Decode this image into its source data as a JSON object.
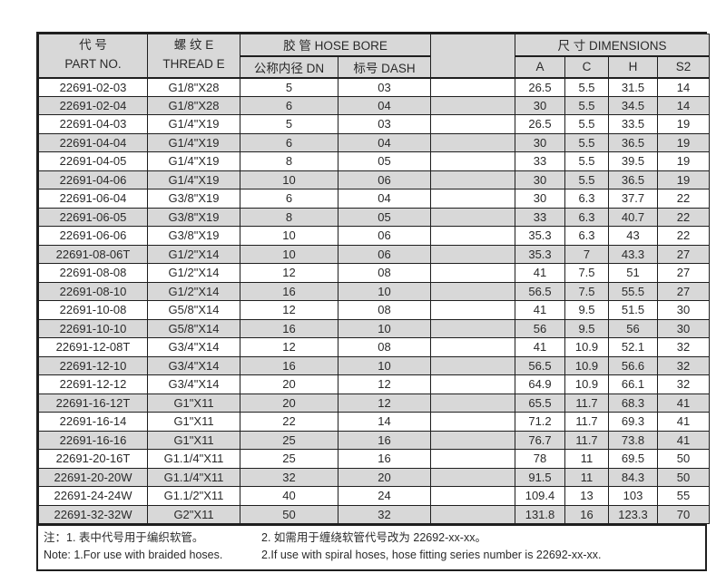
{
  "colors": {
    "border": "#1f1f1f",
    "text": "#2a2a2a",
    "stripe": "#d8d8d8",
    "header_bg": "#d8d8d8",
    "page_bg": "#ffffff"
  },
  "table": {
    "headers": {
      "part_no_zh": "代 号",
      "part_no_en": "PART NO.",
      "thread_zh": "螺 纹 E",
      "thread_en": "THREAD E",
      "hose_bore_group": "胶 管 HOSE BORE",
      "dn": "公称内径 DN",
      "dash": "标号 DASH",
      "blank_column": "",
      "dimensions_group": "尺 寸 DIMENSIONS",
      "dim_a": "A",
      "dim_c": "C",
      "dim_h": "H",
      "dim_s2": "S2"
    },
    "rows": [
      [
        "22691-02-03",
        "G1/8\"X28",
        "5",
        "03",
        "",
        "26.5",
        "5.5",
        "31.5",
        "14"
      ],
      [
        "22691-02-04",
        "G1/8\"X28",
        "6",
        "04",
        "",
        "30",
        "5.5",
        "34.5",
        "14"
      ],
      [
        "22691-04-03",
        "G1/4\"X19",
        "5",
        "03",
        "",
        "26.5",
        "5.5",
        "33.5",
        "19"
      ],
      [
        "22691-04-04",
        "G1/4\"X19",
        "6",
        "04",
        "",
        "30",
        "5.5",
        "36.5",
        "19"
      ],
      [
        "22691-04-05",
        "G1/4\"X19",
        "8",
        "05",
        "",
        "33",
        "5.5",
        "39.5",
        "19"
      ],
      [
        "22691-04-06",
        "G1/4\"X19",
        "10",
        "06",
        "",
        "30",
        "5.5",
        "36.5",
        "19"
      ],
      [
        "22691-06-04",
        "G3/8\"X19",
        "6",
        "04",
        "",
        "30",
        "6.3",
        "37.7",
        "22"
      ],
      [
        "22691-06-05",
        "G3/8\"X19",
        "8",
        "05",
        "",
        "33",
        "6.3",
        "40.7",
        "22"
      ],
      [
        "22691-06-06",
        "G3/8\"X19",
        "10",
        "06",
        "",
        "35.3",
        "6.3",
        "43",
        "22"
      ],
      [
        "22691-08-06T",
        "G1/2\"X14",
        "10",
        "06",
        "",
        "35.3",
        "7",
        "43.3",
        "27"
      ],
      [
        "22691-08-08",
        "G1/2\"X14",
        "12",
        "08",
        "",
        "41",
        "7.5",
        "51",
        "27"
      ],
      [
        "22691-08-10",
        "G1/2\"X14",
        "16",
        "10",
        "",
        "56.5",
        "7.5",
        "55.5",
        "27"
      ],
      [
        "22691-10-08",
        "G5/8\"X14",
        "12",
        "08",
        "",
        "41",
        "9.5",
        "51.5",
        "30"
      ],
      [
        "22691-10-10",
        "G5/8\"X14",
        "16",
        "10",
        "",
        "56",
        "9.5",
        "56",
        "30"
      ],
      [
        "22691-12-08T",
        "G3/4\"X14",
        "12",
        "08",
        "",
        "41",
        "10.9",
        "52.1",
        "32"
      ],
      [
        "22691-12-10",
        "G3/4\"X14",
        "16",
        "10",
        "",
        "56.5",
        "10.9",
        "56.6",
        "32"
      ],
      [
        "22691-12-12",
        "G3/4\"X14",
        "20",
        "12",
        "",
        "64.9",
        "10.9",
        "66.1",
        "32"
      ],
      [
        "22691-16-12T",
        "G1\"X11",
        "20",
        "12",
        "",
        "65.5",
        "11.7",
        "68.3",
        "41"
      ],
      [
        "22691-16-14",
        "G1\"X11",
        "22",
        "14",
        "",
        "71.2",
        "11.7",
        "69.3",
        "41"
      ],
      [
        "22691-16-16",
        "G1\"X11",
        "25",
        "16",
        "",
        "76.7",
        "11.7",
        "73.8",
        "41"
      ],
      [
        "22691-20-16T",
        "G1.1/4\"X11",
        "25",
        "16",
        "",
        "78",
        "11",
        "69.5",
        "50"
      ],
      [
        "22691-20-20W",
        "G1.1/4\"X11",
        "32",
        "20",
        "",
        "91.5",
        "11",
        "84.3",
        "50"
      ],
      [
        "22691-24-24W",
        "G1.1/2\"X11",
        "40",
        "24",
        "",
        "109.4",
        "13",
        "103",
        "55"
      ],
      [
        "22691-32-32W",
        "G2\"X11",
        "50",
        "32",
        "",
        "131.8",
        "16",
        "123.3",
        "70"
      ]
    ]
  },
  "notes": {
    "zh_1": "注：1. 表中代号用于编织软管。",
    "zh_2": "2. 如需用于缠绕软管代号改为 22692-xx-xx。",
    "en_1": "Note: 1.For use with braided hoses.",
    "en_2": "2.If use with spiral hoses, hose fitting series number is 22692-xx-xx."
  }
}
